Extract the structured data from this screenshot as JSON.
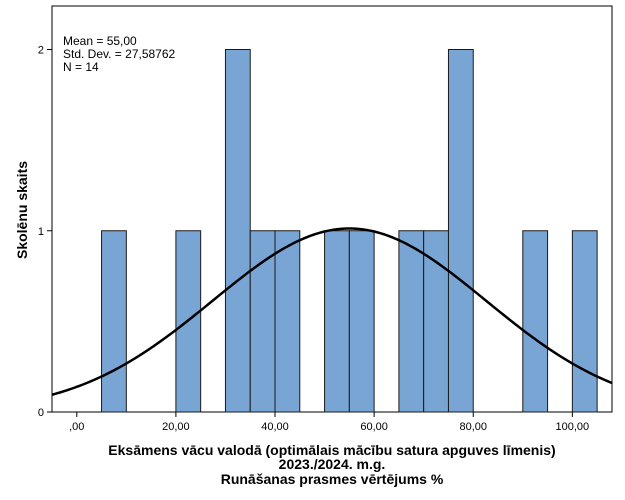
{
  "chart_data": {
    "type": "histogram",
    "bin_width": 5,
    "bins": [
      {
        "start": 5,
        "end": 10,
        "count": 1
      },
      {
        "start": 20,
        "end": 25,
        "count": 1
      },
      {
        "start": 30,
        "end": 35,
        "count": 2
      },
      {
        "start": 35,
        "end": 40,
        "count": 1
      },
      {
        "start": 40,
        "end": 45,
        "count": 1
      },
      {
        "start": 50,
        "end": 55,
        "count": 1
      },
      {
        "start": 55,
        "end": 60,
        "count": 1
      },
      {
        "start": 65,
        "end": 70,
        "count": 1
      },
      {
        "start": 70,
        "end": 75,
        "count": 1
      },
      {
        "start": 75,
        "end": 80,
        "count": 2
      },
      {
        "start": 90,
        "end": 95,
        "count": 1
      },
      {
        "start": 100,
        "end": 105,
        "count": 1
      }
    ],
    "normal_curve": {
      "mean": 55.0,
      "std_dev": 27.58762,
      "n": 14
    },
    "stats_lines": [
      "Mean = 55,00",
      "Std. Dev. = 27,58762",
      "N = 14"
    ],
    "xlim": [
      -5,
      108
    ],
    "ylim": [
      0,
      2.24
    ],
    "x_ticks": [
      {
        "value": 0,
        "label": ",00"
      },
      {
        "value": 20,
        "label": "20,00"
      },
      {
        "value": 40,
        "label": "40,00"
      },
      {
        "value": 60,
        "label": "60,00"
      },
      {
        "value": 80,
        "label": "80,00"
      },
      {
        "value": 100,
        "label": "100,00"
      }
    ],
    "y_ticks": [
      {
        "value": 0,
        "label": "0"
      },
      {
        "value": 1,
        "label": "1"
      },
      {
        "value": 2,
        "label": "2"
      }
    ],
    "xlabel_lines": [
      "Eksāmens vācu valodā (optimālais mācību satura apguves līmenis)",
      "2023./2024. m.g.",
      "Runāšanas prasmes vērtējums %"
    ],
    "ylabel": "Skolēnu skaits",
    "bar_color": "#79a5d5",
    "bar_stroke": "#1a1a1a",
    "curve_color": "#000000",
    "grid": false
  }
}
